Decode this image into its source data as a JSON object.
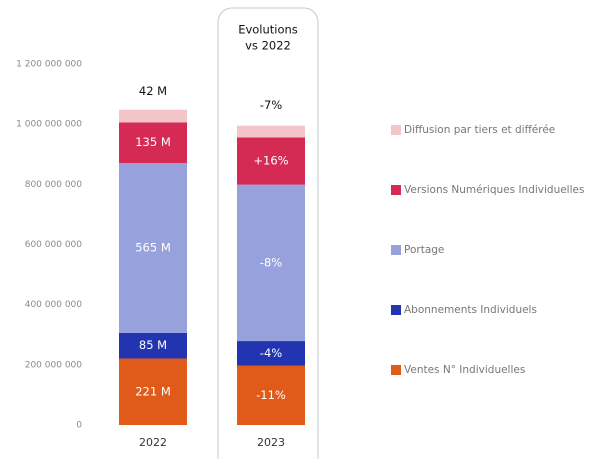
{
  "chart_data": {
    "type": "stacked_bar",
    "box_title": [
      "Evolutions",
      "vs 2022"
    ],
    "categories": [
      "2022",
      "2023"
    ],
    "ylim": [
      0,
      1200000000
    ],
    "yticks": [
      0,
      {
        "value": 200000000,
        "label": "200 000 000"
      },
      {
        "value": 400000000,
        "label": "400 000 000"
      },
      {
        "value": 600000000,
        "label": "600 000 000"
      },
      {
        "value": 800000000,
        "label": "800 000 000"
      },
      {
        "value": 1000000000,
        "label": "1 000 000 000"
      },
      {
        "value": 1200000000,
        "label": "1 200 000 000"
      }
    ],
    "series": [
      {
        "name": "Ventes N° Individuelles",
        "color": "#e05a1a",
        "values": [
          221000000,
          197000000
        ],
        "value_labels": [
          "221 M",
          null
        ],
        "evolution_label": "-11%"
      },
      {
        "name": "Abonnements Individuels",
        "color": "#2334b0",
        "values": [
          85000000,
          82000000
        ],
        "value_labels": [
          "85 M",
          null
        ],
        "evolution_label": "-4%"
      },
      {
        "name": "Portage",
        "color": "#97a1dc",
        "values": [
          565000000,
          520000000
        ],
        "value_labels": [
          "565 M",
          null
        ],
        "evolution_label": "-8%"
      },
      {
        "name": "Versions Numériques Individuelles",
        "color": "#d42a54",
        "values": [
          135000000,
          157000000
        ],
        "value_labels": [
          "135 M",
          null
        ],
        "evolution_label": "+16%"
      },
      {
        "name": "Diffusion par tiers et différée",
        "color": "#f3c5c9",
        "values": [
          42000000,
          39000000
        ],
        "value_labels": [
          "42 M",
          null
        ],
        "evolution_label": "-7%"
      }
    ]
  }
}
